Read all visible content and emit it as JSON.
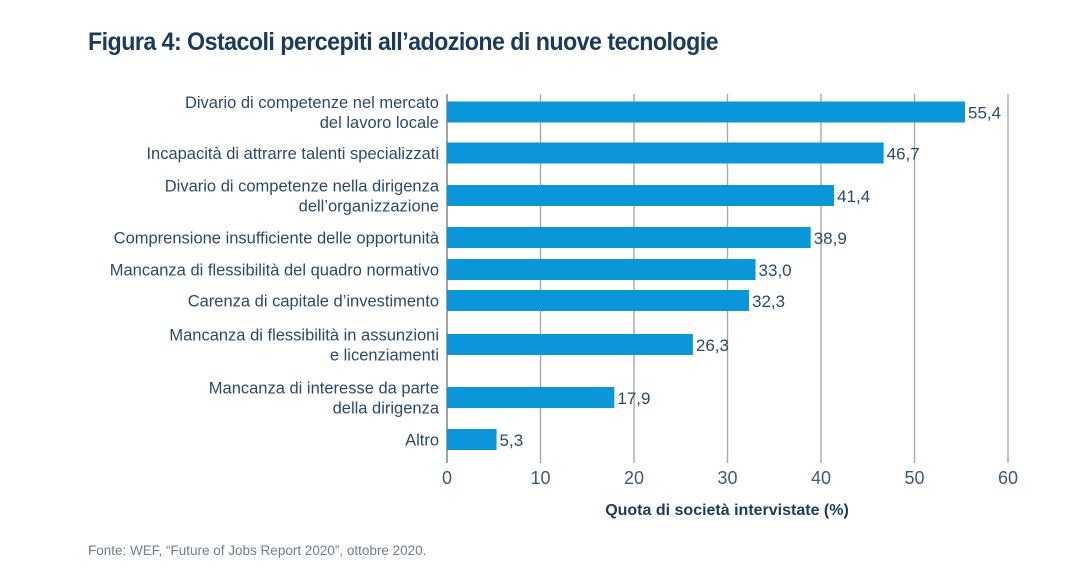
{
  "chart_data": {
    "type": "bar",
    "orientation": "horizontal",
    "title": "Figura 4: Ostacoli percepiti all’adozione di nuove tecnologie",
    "categories": [
      [
        "Divario di competenze nel mercato",
        "del lavoro locale"
      ],
      [
        "Incapacità di attrarre talenti specializzati"
      ],
      [
        "Divario di competenze nella dirigenza",
        "dell’organizzazione"
      ],
      [
        "Comprensione insufficiente delle opportunità"
      ],
      [
        "Mancanza di flessibilità del quadro normativo"
      ],
      [
        "Carenza di capitale d’investimento"
      ],
      [
        "Mancanza di flessibilità in assunzioni",
        "e licenziamenti"
      ],
      [
        "Mancanza di interesse da parte",
        "della dirigenza"
      ],
      [
        "Altro"
      ]
    ],
    "values": [
      55.4,
      46.7,
      41.4,
      38.9,
      33.0,
      32.3,
      26.3,
      17.9,
      5.3
    ],
    "value_labels": [
      "55,4",
      "46,7",
      "41,4",
      "38,9",
      "33,0",
      "32,3",
      "26,3",
      "17,9",
      "5,3"
    ],
    "xlabel": "Quota di società intervistate (%)",
    "ylabel": "",
    "xlim": [
      0,
      60
    ],
    "xticks": [
      0,
      10,
      20,
      30,
      40,
      50,
      60
    ],
    "xtick_labels": [
      "0",
      "10",
      "20",
      "30",
      "40",
      "50",
      "60"
    ],
    "grid": "vertical",
    "legend": "none",
    "bar_color": "#0a96d8"
  },
  "source": "Fonte: WEF, “Future of Jobs Report 2020”, ottobre 2020."
}
